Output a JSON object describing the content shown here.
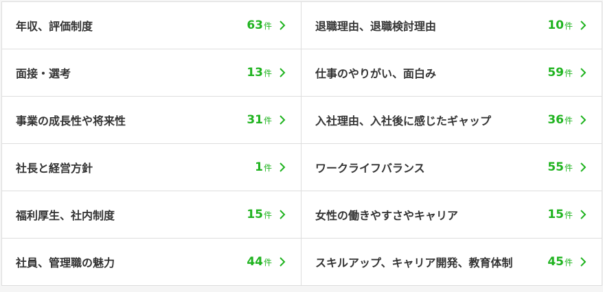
{
  "accent_color": "#1fb31f",
  "unit": "件",
  "items": [
    {
      "label": "年収、評価制度",
      "count": "63"
    },
    {
      "label": "退職理由、退職検討理由",
      "count": "10"
    },
    {
      "label": "面接・選考",
      "count": "13"
    },
    {
      "label": "仕事のやりがい、面白み",
      "count": "59"
    },
    {
      "label": "事業の成長性や将来性",
      "count": "31"
    },
    {
      "label": "入社理由、入社後に感じたギャップ",
      "count": "36"
    },
    {
      "label": "社長と経営方針",
      "count": "1"
    },
    {
      "label": "ワークライフバランス",
      "count": "55"
    },
    {
      "label": "福利厚生、社内制度",
      "count": "15"
    },
    {
      "label": "女性の働きやすさやキャリア",
      "count": "15"
    },
    {
      "label": "社員、管理職の魅力",
      "count": "44"
    },
    {
      "label": "スキルアップ、キャリア開発、教育体制",
      "count": "45"
    }
  ]
}
